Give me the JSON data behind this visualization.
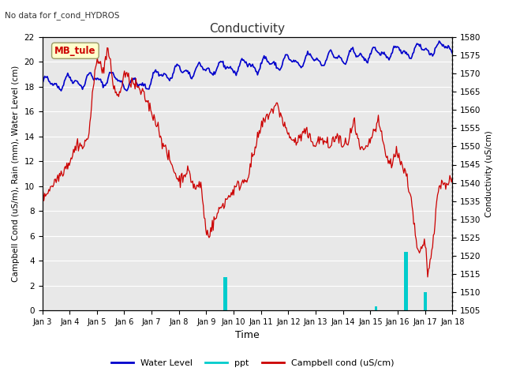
{
  "title": "Conductivity",
  "subtitle": "No data for f_cond_HYDROS",
  "xlabel": "Time",
  "ylabel_left": "Campbell Cond (uS/m), Rain (mm), Water Level (cm)",
  "ylabel_right": "Conductivity (uS/cm)",
  "site_label": "MB_tule",
  "ylim_left": [
    0,
    22
  ],
  "ylim_right": [
    1505,
    1580
  ],
  "yticks_left": [
    0,
    2,
    4,
    6,
    8,
    10,
    12,
    14,
    16,
    18,
    20,
    22
  ],
  "yticks_right": [
    1505,
    1510,
    1515,
    1520,
    1525,
    1530,
    1535,
    1540,
    1545,
    1550,
    1555,
    1560,
    1565,
    1570,
    1575,
    1580
  ],
  "plot_bg_color": "#e8e8e8",
  "grid_color": "#ffffff",
  "water_level_color": "#0000cc",
  "ppt_color": "#00cccc",
  "campbell_color": "#cc0000",
  "legend_labels": [
    "Water Level",
    "ppt",
    "Campbell cond (uS/cm)"
  ],
  "site_label_color": "#cc0000",
  "site_label_bg": "#ffffcc",
  "site_label_border": "#999966",
  "x_tick_labels": [
    "Jan 3",
    "Jan 4",
    "Jan 5",
    "Jan 6",
    "Jan 7",
    "Jan 8",
    "Jan 9",
    "Jan 10",
    "Jan 11",
    "Jan 12",
    "Jan 13",
    "Jan 14",
    "Jan 15",
    "Jan 16",
    "Jan 17",
    "Jan 18"
  ],
  "figsize": [
    6.4,
    4.8
  ],
  "dpi": 100
}
